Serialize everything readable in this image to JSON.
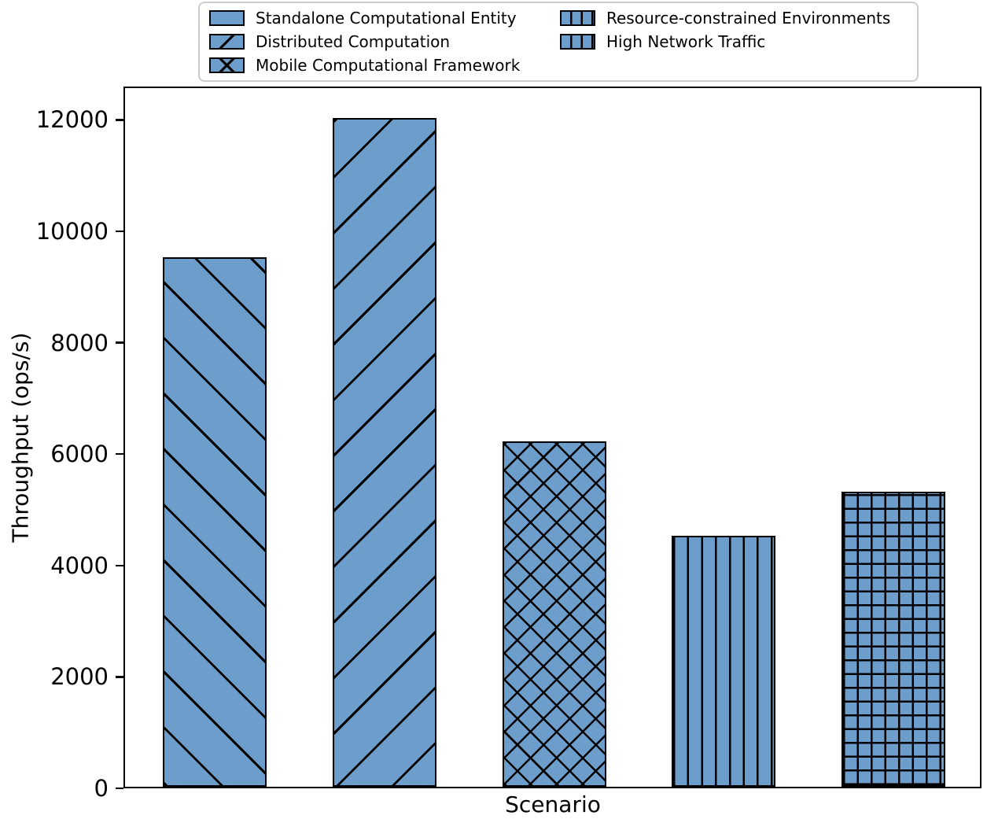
{
  "chart_data": {
    "type": "bar",
    "title": "",
    "xlabel": "Scenario",
    "ylabel": "Throughput (ops/s)",
    "categories": [
      "Standalone Computational Entity",
      "Distributed Computation",
      "Mobile Computational Framework",
      "Resource-constrained Environments",
      "High Network Traffic"
    ],
    "values": [
      9500,
      12000,
      6200,
      4500,
      5300
    ],
    "hatches": [
      "backslash",
      "slash",
      "cross",
      "vertical",
      "grid"
    ],
    "ylim": [
      0,
      12600
    ],
    "yticks": [
      0,
      2000,
      4000,
      6000,
      8000,
      10000,
      12000
    ],
    "grid": false,
    "legend_position": "top-center",
    "legend_columns": 2,
    "bar_fill_color": "#6D9DCA",
    "bar_edge_color": "#000000",
    "axis_color": "#000000"
  }
}
